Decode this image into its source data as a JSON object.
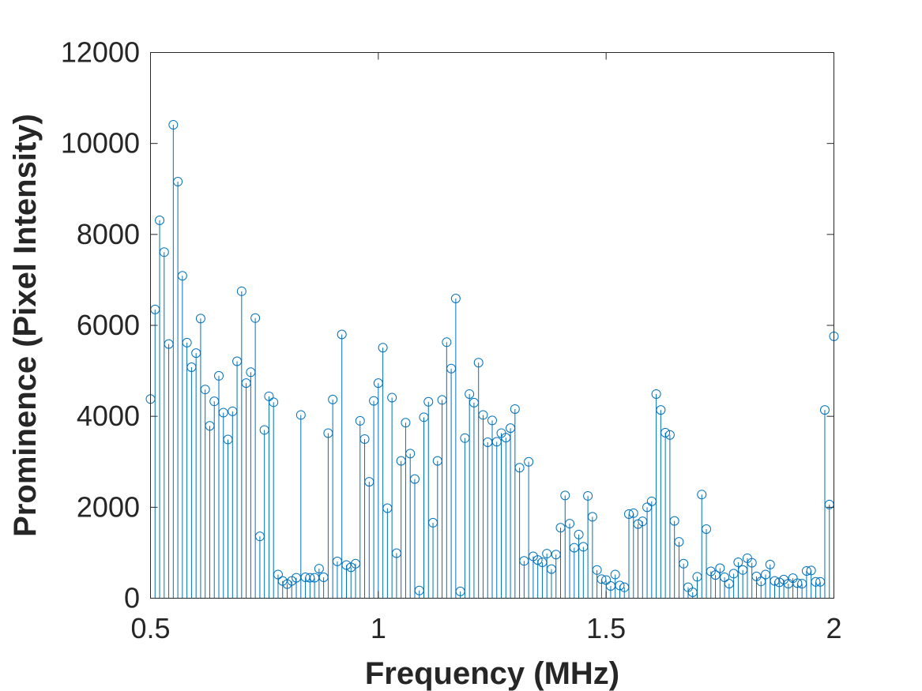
{
  "chart_data": {
    "type": "stem",
    "title": "",
    "xlabel": "Frequency (MHz)",
    "ylabel": "Prominence (Pixel Intensity)",
    "xlim": [
      0.5,
      2
    ],
    "ylim": [
      0,
      12000
    ],
    "xticks": [
      0.5,
      1,
      1.5,
      2
    ],
    "xtick_labels": [
      "0.5",
      "1",
      "1.5",
      "2"
    ],
    "yticks": [
      0,
      2000,
      4000,
      6000,
      8000,
      10000,
      12000
    ],
    "ytick_labels": [
      "0",
      "2000",
      "4000",
      "6000",
      "8000",
      "10000",
      "12000"
    ],
    "grid": false,
    "marker": "circle",
    "colors": {
      "series": "#0072BD",
      "axes": "#262626"
    },
    "series": [
      {
        "x": [
          0.5,
          0.51,
          0.52,
          0.53,
          0.54,
          0.55,
          0.56,
          0.57,
          0.58,
          0.59,
          0.6,
          0.61,
          0.62,
          0.63,
          0.64,
          0.65,
          0.66,
          0.67,
          0.68,
          0.69,
          0.7,
          0.71,
          0.72,
          0.73,
          0.74,
          0.75,
          0.76,
          0.77,
          0.78,
          0.79,
          0.8,
          0.81,
          0.82,
          0.83,
          0.84,
          0.85,
          0.86,
          0.87,
          0.88,
          0.89,
          0.9,
          0.91,
          0.92,
          0.93,
          0.94,
          0.95,
          0.96,
          0.97,
          0.98,
          0.99,
          1.0,
          1.01,
          1.02,
          1.03,
          1.04,
          1.05,
          1.06,
          1.07,
          1.08,
          1.09,
          1.1,
          1.11,
          1.12,
          1.13,
          1.14,
          1.15,
          1.16,
          1.17,
          1.18,
          1.19,
          1.2,
          1.21,
          1.22,
          1.23,
          1.24,
          1.25,
          1.26,
          1.27,
          1.28,
          1.29,
          1.3,
          1.31,
          1.32,
          1.33,
          1.34,
          1.35,
          1.36,
          1.37,
          1.38,
          1.39,
          1.4,
          1.41,
          1.42,
          1.43,
          1.44,
          1.45,
          1.46,
          1.47,
          1.48,
          1.49,
          1.5,
          1.51,
          1.52,
          1.53,
          1.54,
          1.55,
          1.56,
          1.57,
          1.58,
          1.59,
          1.6,
          1.61,
          1.62,
          1.63,
          1.64,
          1.65,
          1.66,
          1.67,
          1.68,
          1.69,
          1.7,
          1.71,
          1.72,
          1.73,
          1.74,
          1.75,
          1.76,
          1.77,
          1.78,
          1.79,
          1.8,
          1.81,
          1.82,
          1.83,
          1.84,
          1.85,
          1.86,
          1.87,
          1.88,
          1.89,
          1.9,
          1.91,
          1.92,
          1.93,
          1.94,
          1.95,
          1.96,
          1.97,
          1.98,
          1.99,
          2.0
        ],
        "y": [
          4380,
          6350,
          8310,
          7610,
          5590,
          10410,
          9160,
          7090,
          5620,
          5080,
          5390,
          6150,
          4590,
          3790,
          4330,
          4890,
          4080,
          3490,
          4110,
          5210,
          6750,
          4730,
          4970,
          6160,
          1360,
          3700,
          4440,
          4310,
          520,
          380,
          310,
          380,
          450,
          4030,
          460,
          450,
          450,
          650,
          460,
          3630,
          4370,
          810,
          5800,
          730,
          680,
          760,
          3900,
          3500,
          2560,
          4340,
          4730,
          5510,
          1980,
          4410,
          990,
          3020,
          3860,
          3180,
          2620,
          170,
          3980,
          4320,
          1660,
          3020,
          4360,
          5630,
          5050,
          6590,
          150,
          3520,
          4490,
          4300,
          5180,
          4030,
          3430,
          3910,
          3440,
          3630,
          3530,
          3740,
          4160,
          2870,
          820,
          3000,
          920,
          840,
          790,
          980,
          640,
          960,
          1550,
          2260,
          1640,
          1110,
          1400,
          1130,
          2250,
          1790,
          620,
          420,
          400,
          270,
          520,
          280,
          240,
          1850,
          1870,
          1630,
          1690,
          2000,
          2130,
          4490,
          4140,
          3640,
          3590,
          1700,
          1240,
          760,
          240,
          130,
          470,
          2280,
          1520,
          590,
          510,
          660,
          460,
          320,
          540,
          790,
          620,
          880,
          780,
          480,
          370,
          520,
          740,
          380,
          350,
          410,
          320,
          440,
          330,
          320,
          600,
          610,
          360,
          360,
          4140,
          2060,
          5760
        ]
      }
    ]
  }
}
